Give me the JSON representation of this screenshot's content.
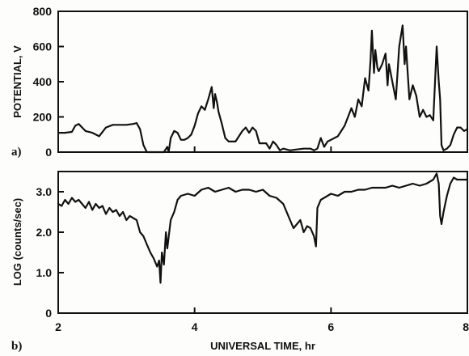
{
  "chart_data": [
    {
      "type": "line",
      "panel_label": "a)",
      "ylabel": "POTENTIAL,  V",
      "ylim": [
        0,
        800
      ],
      "yticks": [
        "0",
        "200",
        "400",
        "600",
        "800"
      ],
      "xlim": [
        2,
        8
      ],
      "series": [
        {
          "x": [
            2.0,
            2.1,
            2.2,
            2.25,
            2.3,
            2.4,
            2.5,
            2.6,
            2.7,
            2.8,
            2.9,
            3.0,
            3.1,
            3.15,
            3.2,
            3.25,
            3.3,
            3.4,
            3.5,
            3.55,
            3.6,
            3.62,
            3.65,
            3.7,
            3.75,
            3.8,
            3.85,
            3.9,
            3.95,
            4.0,
            4.05,
            4.1,
            4.15,
            4.2,
            4.25,
            4.28,
            4.3,
            4.33,
            4.35,
            4.4,
            4.45,
            4.5,
            4.6,
            4.7,
            4.75,
            4.8,
            4.85,
            4.9,
            4.95,
            5.0,
            5.05,
            5.1,
            5.15,
            5.2,
            5.25,
            5.3,
            5.4,
            5.5,
            5.6,
            5.7,
            5.75,
            5.8,
            5.85,
            5.9,
            5.95,
            6.0,
            6.1,
            6.2,
            6.3,
            6.35,
            6.4,
            6.45,
            6.5,
            6.55,
            6.58,
            6.6,
            6.63,
            6.65,
            6.68,
            6.7,
            6.75,
            6.8,
            6.83,
            6.85,
            6.9,
            6.95,
            7.0,
            7.05,
            7.08,
            7.1,
            7.13,
            7.15,
            7.2,
            7.25,
            7.3,
            7.35,
            7.4,
            7.45,
            7.5,
            7.55,
            7.58,
            7.6,
            7.62,
            7.65,
            7.7,
            7.75,
            7.8,
            7.85,
            7.9,
            7.95,
            8.0
          ],
          "y": [
            110,
            110,
            115,
            150,
            160,
            120,
            110,
            90,
            140,
            155,
            155,
            155,
            160,
            165,
            130,
            40,
            0,
            0,
            0,
            0,
            30,
            0,
            80,
            120,
            110,
            70,
            70,
            80,
            100,
            150,
            220,
            260,
            240,
            300,
            370,
            250,
            330,
            280,
            230,
            160,
            80,
            60,
            60,
            120,
            140,
            110,
            140,
            120,
            50,
            50,
            50,
            20,
            60,
            40,
            10,
            20,
            10,
            15,
            20,
            20,
            10,
            20,
            80,
            30,
            60,
            70,
            90,
            150,
            250,
            200,
            300,
            260,
            420,
            350,
            520,
            690,
            450,
            580,
            480,
            460,
            500,
            560,
            380,
            500,
            400,
            300,
            600,
            720,
            500,
            600,
            420,
            300,
            380,
            320,
            200,
            240,
            200,
            210,
            180,
            600,
            400,
            300,
            40,
            10,
            20,
            40,
            100,
            140,
            140,
            120,
            130
          ]
        }
      ]
    },
    {
      "type": "line",
      "panel_label": "b)",
      "ylabel": "LOG  (counts/sec)",
      "xlabel": "UNIVERSAL TIME, hr",
      "ylim": [
        0,
        3.5
      ],
      "yticks": [
        "0",
        "1.0",
        "2.0",
        "3.0"
      ],
      "xlim": [
        2,
        8
      ],
      "xticks": [
        "2",
        "4",
        "6",
        "8"
      ],
      "series": [
        {
          "x": [
            2.0,
            2.05,
            2.1,
            2.15,
            2.2,
            2.25,
            2.3,
            2.35,
            2.4,
            2.45,
            2.5,
            2.55,
            2.6,
            2.65,
            2.7,
            2.75,
            2.8,
            2.85,
            2.9,
            2.95,
            3.0,
            3.05,
            3.1,
            3.15,
            3.2,
            3.25,
            3.3,
            3.35,
            3.4,
            3.45,
            3.48,
            3.5,
            3.52,
            3.55,
            3.58,
            3.6,
            3.65,
            3.7,
            3.75,
            3.8,
            3.9,
            4.0,
            4.1,
            4.2,
            4.3,
            4.4,
            4.5,
            4.6,
            4.7,
            4.8,
            4.9,
            5.0,
            5.1,
            5.2,
            5.3,
            5.35,
            5.4,
            5.45,
            5.5,
            5.55,
            5.6,
            5.65,
            5.7,
            5.75,
            5.78,
            5.8,
            5.85,
            5.9,
            6.0,
            6.1,
            6.2,
            6.3,
            6.4,
            6.5,
            6.6,
            6.7,
            6.8,
            6.9,
            7.0,
            7.1,
            7.2,
            7.3,
            7.4,
            7.5,
            7.55,
            7.58,
            7.6,
            7.62,
            7.65,
            7.7,
            7.75,
            7.8,
            7.85,
            7.9,
            8.0
          ],
          "y": [
            2.7,
            2.65,
            2.8,
            2.7,
            2.85,
            2.75,
            2.8,
            2.7,
            2.6,
            2.75,
            2.55,
            2.7,
            2.6,
            2.65,
            2.45,
            2.6,
            2.5,
            2.55,
            2.4,
            2.5,
            2.3,
            2.4,
            2.35,
            2.3,
            2.0,
            1.9,
            1.7,
            1.5,
            1.35,
            1.15,
            1.3,
            0.75,
            1.5,
            1.2,
            2.0,
            1.6,
            2.3,
            2.5,
            2.8,
            2.9,
            2.95,
            2.9,
            3.05,
            3.1,
            3.0,
            3.05,
            3.1,
            3.0,
            3.05,
            3.05,
            3.0,
            3.05,
            2.9,
            2.85,
            2.7,
            2.5,
            2.3,
            2.1,
            2.2,
            2.3,
            2.0,
            2.15,
            2.1,
            1.9,
            1.65,
            2.6,
            2.8,
            2.85,
            2.95,
            2.9,
            3.0,
            3.0,
            3.05,
            3.05,
            3.1,
            3.1,
            3.1,
            3.15,
            3.1,
            3.15,
            3.2,
            3.15,
            3.2,
            3.3,
            3.45,
            3.2,
            2.4,
            2.2,
            2.5,
            2.9,
            3.2,
            3.35,
            3.3,
            3.3,
            3.3
          ]
        }
      ]
    }
  ]
}
